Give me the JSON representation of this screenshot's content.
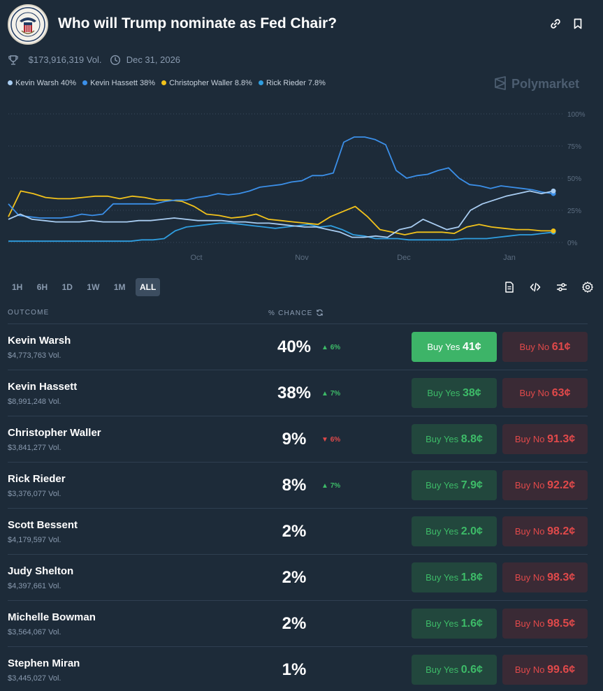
{
  "header": {
    "title": "Who will Trump nominate as Fed Chair?",
    "volume": "$173,916,319 Vol.",
    "end_date": "Dec 31, 2026",
    "brand": "Polymarket",
    "icons": [
      "trophy-icon",
      "clock-icon",
      "link-icon",
      "bookmark-icon"
    ]
  },
  "legend": [
    {
      "label": "Kevin Warsh 40%",
      "color": "#a9cdf2"
    },
    {
      "label": "Kevin Hassett 38%",
      "color": "#3b8fe8"
    },
    {
      "label": "Christopher Waller 8.8%",
      "color": "#f2c21b"
    },
    {
      "label": "Rick Rieder 7.8%",
      "color": "#2f9ee0"
    }
  ],
  "chart_data": {
    "type": "line",
    "x_labels": [
      "Oct",
      "Nov",
      "Dec",
      "Jan"
    ],
    "y_ticks": [
      "100%",
      "75%",
      "50%",
      "25%",
      "0%"
    ],
    "ylim": [
      0,
      100
    ],
    "grid": true,
    "series": [
      {
        "name": "Kevin Warsh",
        "color": "#a9cdf2",
        "values": [
          18,
          22,
          18,
          17,
          16,
          16,
          16,
          17,
          16,
          16,
          16,
          17,
          17,
          18,
          19,
          18,
          17,
          17,
          17,
          16,
          16,
          15,
          15,
          14,
          13,
          12,
          12,
          10,
          8,
          4,
          4,
          5,
          4,
          10,
          12,
          18,
          14,
          10,
          12,
          25,
          30,
          33,
          36,
          38,
          40,
          38,
          40
        ]
      },
      {
        "name": "Kevin Hassett",
        "color": "#3b8fe8",
        "values": [
          30,
          21,
          20,
          19,
          19,
          19,
          20,
          22,
          21,
          22,
          30,
          30,
          30,
          30,
          30,
          32,
          33,
          33,
          35,
          36,
          38,
          37,
          38,
          40,
          43,
          44,
          45,
          47,
          48,
          52,
          52,
          54,
          78,
          82,
          82,
          80,
          76,
          56,
          50,
          52,
          53,
          56,
          58,
          50,
          45,
          44,
          42,
          44,
          43,
          42,
          41,
          39,
          38
        ]
      },
      {
        "name": "Christopher Waller",
        "color": "#f2c21b",
        "values": [
          20,
          40,
          38,
          35,
          34,
          34,
          35,
          36,
          36,
          34,
          36,
          35,
          33,
          33,
          32,
          28,
          22,
          21,
          19,
          20,
          22,
          18,
          17,
          16,
          15,
          14,
          20,
          24,
          28,
          20,
          10,
          8,
          6,
          8,
          8,
          8,
          7,
          12,
          14,
          12,
          11,
          10,
          10,
          9,
          9
        ]
      },
      {
        "name": "Rick Rieder",
        "color": "#2f9ee0",
        "values": [
          1,
          1,
          1,
          1,
          1,
          1,
          1,
          1,
          1,
          1,
          1,
          1,
          2,
          2,
          3,
          9,
          12,
          13,
          14,
          15,
          15,
          14,
          13,
          12,
          11,
          12,
          13,
          14,
          12,
          13,
          10,
          6,
          5,
          3,
          3,
          3,
          2,
          2,
          2,
          2,
          2,
          3,
          3,
          3,
          4,
          5,
          6,
          6,
          7,
          8
        ]
      }
    ]
  },
  "ranges": [
    {
      "label": "1H",
      "active": false
    },
    {
      "label": "6H",
      "active": false
    },
    {
      "label": "1D",
      "active": false
    },
    {
      "label": "1W",
      "active": false
    },
    {
      "label": "1M",
      "active": false
    },
    {
      "label": "ALL",
      "active": true
    }
  ],
  "toolbar_icons": [
    "document-icon",
    "code-icon",
    "sliders-icon",
    "gear-icon"
  ],
  "table": {
    "col_outcome": "OUTCOME",
    "col_chance": "% CHANCE",
    "rows": [
      {
        "name": "Kevin Warsh",
        "vol": "$4,773,763 Vol.",
        "pct": "40%",
        "change": "6%",
        "dir": "up",
        "yes_label": "Buy Yes",
        "yes_price": "41¢",
        "no_label": "Buy No",
        "no_price": "61¢"
      },
      {
        "name": "Kevin Hassett",
        "vol": "$8,991,248 Vol.",
        "pct": "38%",
        "change": "7%",
        "dir": "up",
        "yes_label": "Buy Yes",
        "yes_price": "38¢",
        "no_label": "Buy No",
        "no_price": "63¢"
      },
      {
        "name": "Christopher Waller",
        "vol": "$3,841,277 Vol.",
        "pct": "9%",
        "change": "6%",
        "dir": "down",
        "yes_label": "Buy Yes",
        "yes_price": "8.8¢",
        "no_label": "Buy No",
        "no_price": "91.3¢"
      },
      {
        "name": "Rick Rieder",
        "vol": "$3,376,077 Vol.",
        "pct": "8%",
        "change": "7%",
        "dir": "up",
        "yes_label": "Buy Yes",
        "yes_price": "7.9¢",
        "no_label": "Buy No",
        "no_price": "92.2¢"
      },
      {
        "name": "Scott Bessent",
        "vol": "$4,179,597 Vol.",
        "pct": "2%",
        "change": "",
        "dir": "",
        "yes_label": "Buy Yes",
        "yes_price": "2.0¢",
        "no_label": "Buy No",
        "no_price": "98.2¢"
      },
      {
        "name": "Judy Shelton",
        "vol": "$4,397,661 Vol.",
        "pct": "2%",
        "change": "",
        "dir": "",
        "yes_label": "Buy Yes",
        "yes_price": "1.8¢",
        "no_label": "Buy No",
        "no_price": "98.3¢"
      },
      {
        "name": "Michelle Bowman",
        "vol": "$3,564,067 Vol.",
        "pct": "2%",
        "change": "",
        "dir": "",
        "yes_label": "Buy Yes",
        "yes_price": "1.6¢",
        "no_label": "Buy No",
        "no_price": "98.5¢"
      },
      {
        "name": "Stephen Miran",
        "vol": "$3,445,027 Vol.",
        "pct": "1%",
        "change": "",
        "dir": "",
        "yes_label": "Buy Yes",
        "yes_price": "0.6¢",
        "no_label": "Buy No",
        "no_price": "99.6¢"
      }
    ]
  }
}
